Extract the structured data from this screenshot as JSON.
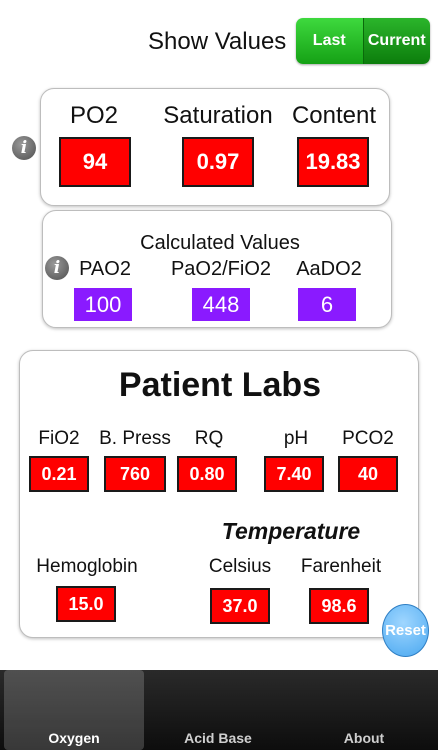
{
  "header": {
    "show_values_label": "Show Values",
    "segment": {
      "last": "Last",
      "current": "Current"
    }
  },
  "oxygen_panel": {
    "po2": {
      "label": "PO2",
      "value": "94"
    },
    "saturation": {
      "label": "Saturation",
      "value": "0.97"
    },
    "content": {
      "label": "Content",
      "value": "19.83"
    }
  },
  "calculated_panel": {
    "title": "Calculated Values",
    "pao2": {
      "label": "PAO2",
      "value": "100"
    },
    "pao2_fio2": {
      "label": "PaO2/FiO2",
      "value": "448"
    },
    "aado2": {
      "label": "AaDO2",
      "value": "6"
    }
  },
  "labs_panel": {
    "title": "Patient Labs",
    "fio2": {
      "label": "FiO2",
      "value": "0.21"
    },
    "bpress": {
      "label": "B. Press",
      "value": "760"
    },
    "rq": {
      "label": "RQ",
      "value": "0.80"
    },
    "ph": {
      "label": "pH",
      "value": "7.40"
    },
    "pco2": {
      "label": "PCO2",
      "value": "40"
    },
    "temperature_title": "Temperature",
    "hemoglobin": {
      "label": "Hemoglobin",
      "value": "15.0"
    },
    "celsius": {
      "label": "Celsius",
      "value": "37.0"
    },
    "farenheit": {
      "label": "Farenheit",
      "value": "98.6"
    },
    "reset_label": "Reset"
  },
  "tabs": [
    {
      "label": "Oxygen",
      "active": true
    },
    {
      "label": "Acid Base",
      "active": false
    },
    {
      "label": "About",
      "active": false
    }
  ],
  "colors": {
    "value_red": "#ff0000",
    "calc_purple": "#8a1aff",
    "segment_green": "#1fae1f",
    "reset_blue": "#5ab4f5"
  }
}
